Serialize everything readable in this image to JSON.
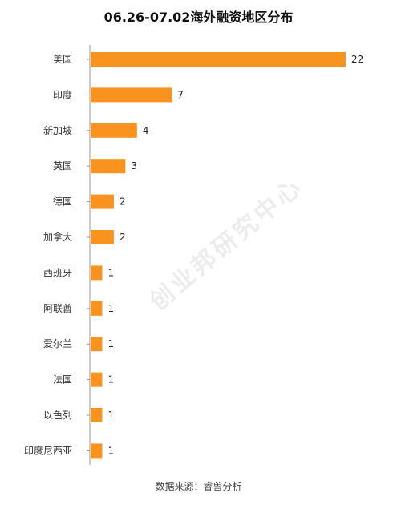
{
  "chart_data": {
    "type": "bar",
    "orientation": "horizontal",
    "title": "06.26-07.02海外融资地区分布",
    "categories": [
      "美国",
      "印度",
      "新加坡",
      "英国",
      "德国",
      "加拿大",
      "西班牙",
      "阿联酋",
      "爱尔兰",
      "法国",
      "以色列",
      "印度尼西亚"
    ],
    "values": [
      22,
      7,
      4,
      3,
      2,
      2,
      1,
      1,
      1,
      1,
      1,
      1
    ],
    "xlim": [
      0,
      22
    ],
    "bar_color": "#F7931E",
    "grid": false,
    "legend": "none",
    "source": "数据来源：睿兽分析",
    "watermark": "创业邦研究中心"
  }
}
